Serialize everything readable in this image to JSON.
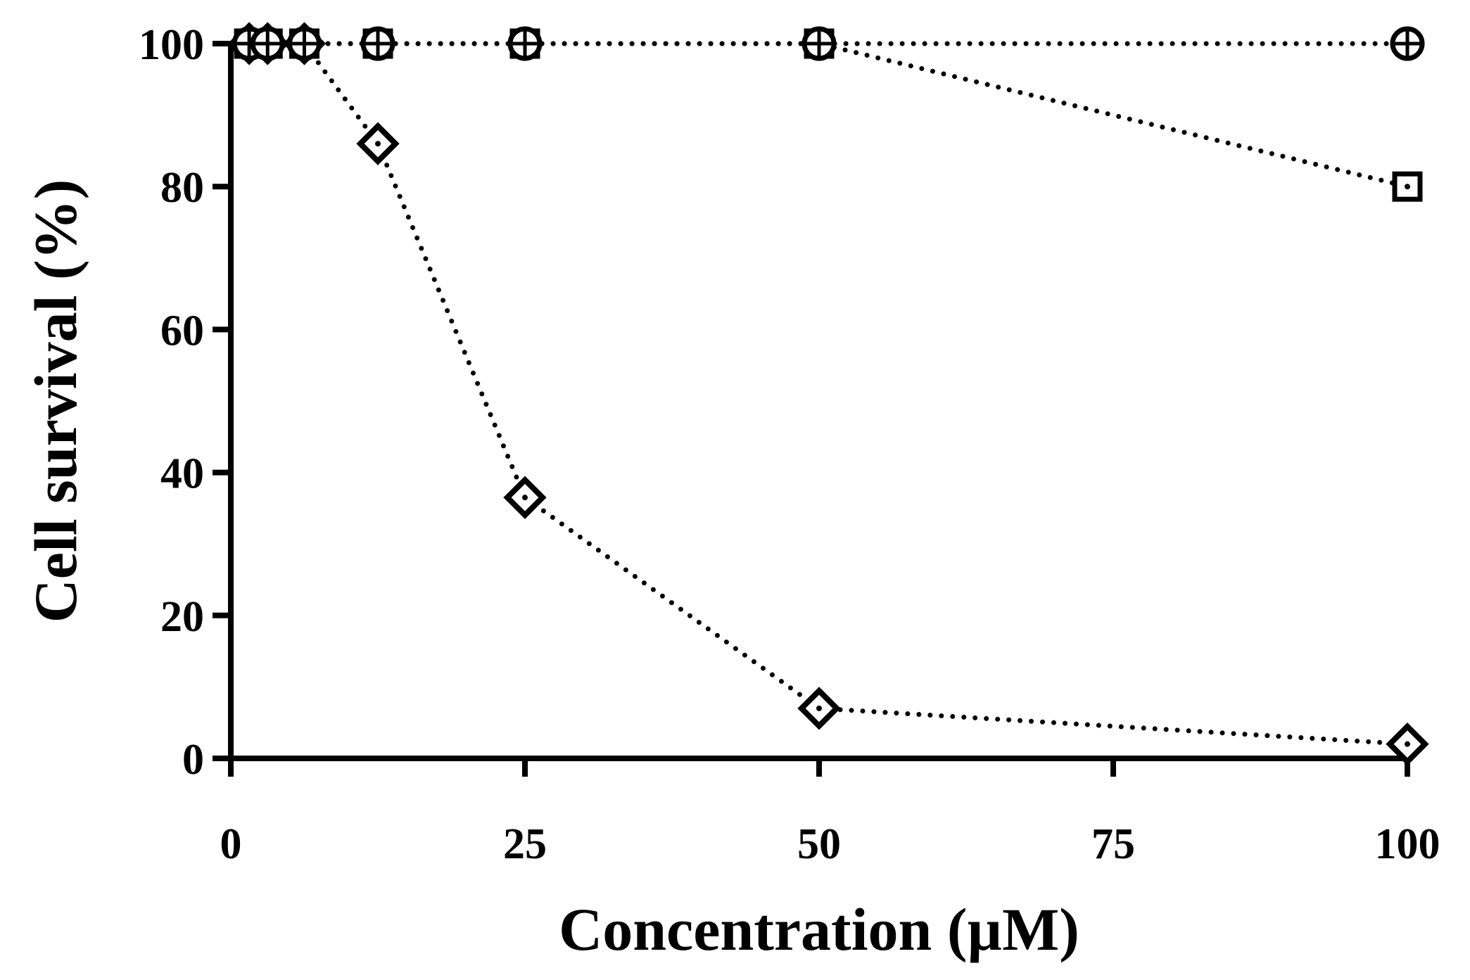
{
  "chart_data": {
    "type": "line",
    "title": "",
    "xlabel": "Concentration (µM)",
    "ylabel": "Cell survival (%)",
    "xlim": [
      0,
      100
    ],
    "ylim": [
      0,
      100
    ],
    "xticks": [
      0,
      25,
      50,
      75,
      100
    ],
    "yticks": [
      0,
      20,
      40,
      60,
      80,
      100
    ],
    "x_tick_labels": [
      "0",
      "25",
      "50",
      "75",
      "100"
    ],
    "y_tick_labels": [
      "0",
      "20",
      "40",
      "60",
      "80",
      "100"
    ],
    "grid": false,
    "legend": false,
    "series": [
      {
        "marker": "diamond",
        "line_style": "dotted",
        "x": [
          1.5625,
          3.125,
          6.25,
          12.5,
          25,
          50,
          100
        ],
        "values": [
          100,
          100,
          100,
          86,
          36.5,
          7,
          2
        ]
      },
      {
        "marker": "square",
        "line_style": "dotted",
        "x": [
          1.5625,
          3.125,
          6.25,
          12.5,
          25,
          50,
          100
        ],
        "values": [
          100,
          100,
          100,
          100,
          100,
          100,
          80
        ]
      },
      {
        "marker": "circle-plus",
        "line_style": "dotted",
        "x": [
          1.5625,
          3.125,
          6.25,
          12.5,
          25,
          50,
          100
        ],
        "values": [
          100,
          100,
          100,
          100,
          100,
          100,
          100
        ]
      }
    ]
  }
}
